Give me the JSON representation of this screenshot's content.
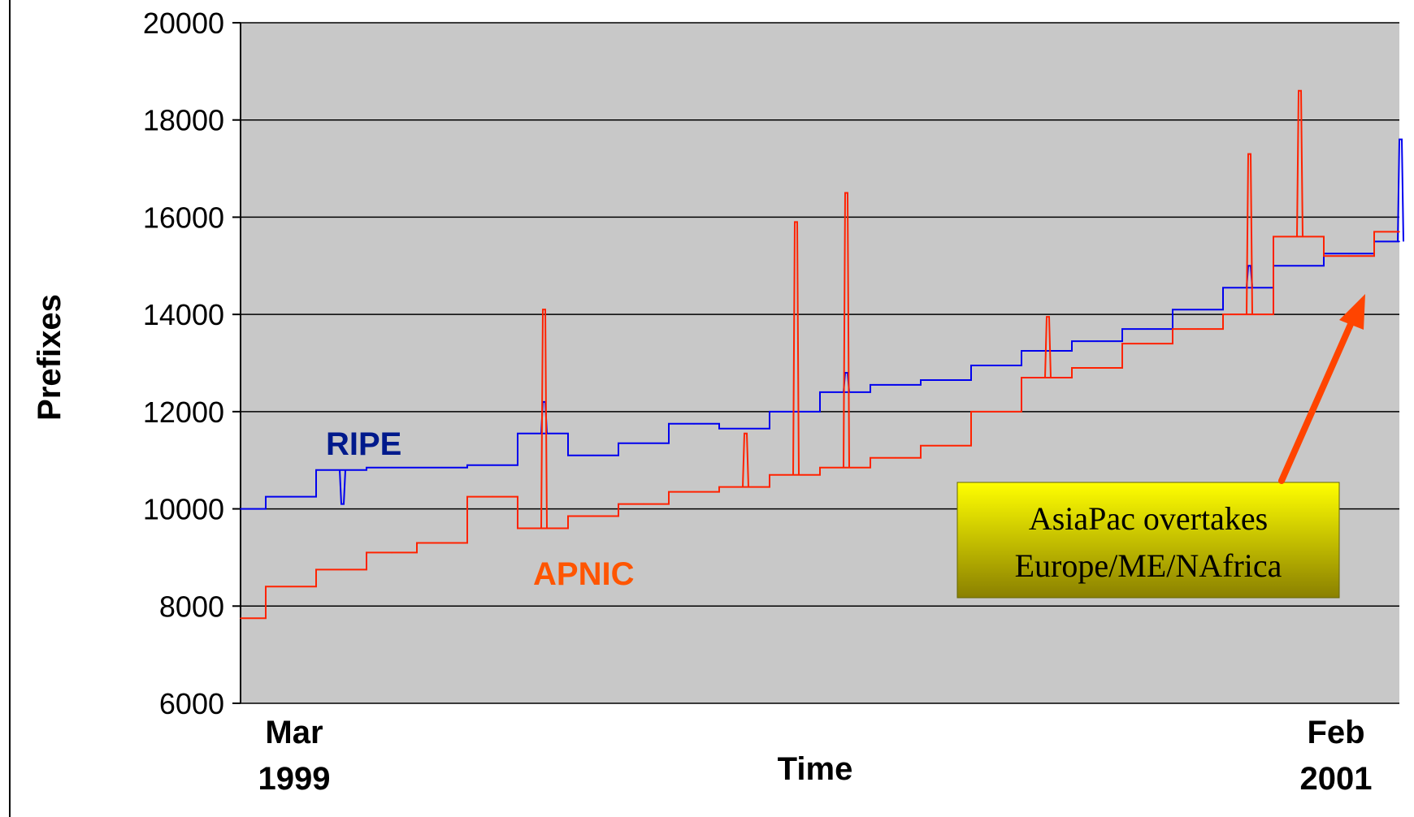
{
  "chart_data": {
    "type": "line",
    "title": "",
    "xlabel": "Time",
    "ylabel": "Prefixes",
    "ylim": [
      6000,
      20000
    ],
    "yticks": [
      "6000",
      "8000",
      "10000",
      "12000",
      "14000",
      "16000",
      "18000",
      "20000"
    ],
    "x_range_months": [
      "1999-03",
      "2001-02"
    ],
    "x_corner_labels": {
      "start_month": "Mar",
      "start_year": "1999",
      "end_month": "Feb",
      "end_year": "2001"
    },
    "grid": true,
    "background_color": "#c8c8c8",
    "series": [
      {
        "name": "RIPE",
        "color": "#0000ee",
        "label_color": "#001a8c",
        "x": [
          "1999-03",
          "1999-04",
          "1999-05",
          "1999-06",
          "1999-07",
          "1999-08",
          "1999-09",
          "1999-10",
          "1999-11",
          "1999-12",
          "2000-01",
          "2000-02",
          "2000-03",
          "2000-04",
          "2000-05",
          "2000-06",
          "2000-07",
          "2000-08",
          "2000-09",
          "2000-10",
          "2000-11",
          "2000-12",
          "2001-01",
          "2001-02"
        ],
        "values": [
          10000,
          10250,
          10800,
          10850,
          10850,
          10900,
          11550,
          11100,
          11350,
          11750,
          11650,
          12000,
          12400,
          12550,
          12650,
          12950,
          13250,
          13450,
          13700,
          14100,
          14550,
          15000,
          15250,
          15500
        ]
      },
      {
        "name": "APNIC",
        "color": "#ff2200",
        "label_color": "#ff5500",
        "x": [
          "1999-03",
          "1999-04",
          "1999-05",
          "1999-06",
          "1999-07",
          "1999-08",
          "1999-09",
          "1999-10",
          "1999-11",
          "1999-12",
          "2000-01",
          "2000-02",
          "2000-03",
          "2000-04",
          "2000-05",
          "2000-06",
          "2000-07",
          "2000-08",
          "2000-09",
          "2000-10",
          "2000-11",
          "2000-12",
          "2001-01",
          "2001-02"
        ],
        "values": [
          7750,
          8400,
          8750,
          9100,
          9300,
          10250,
          9600,
          9850,
          10100,
          10350,
          10450,
          10700,
          10850,
          11050,
          11300,
          12000,
          12700,
          12900,
          13400,
          13700,
          14000,
          15600,
          15200,
          15700
        ]
      }
    ],
    "spikes": [
      {
        "series": "RIPE",
        "x": "1999-05",
        "value": 10100
      },
      {
        "series": "RIPE",
        "x": "1999-09",
        "value": 12200
      },
      {
        "series": "RIPE",
        "x": "2000-03",
        "value": 12800
      },
      {
        "series": "RIPE",
        "x": "2000-11",
        "value": 15000
      },
      {
        "series": "RIPE",
        "x": "2001-02",
        "value": 17600
      },
      {
        "series": "APNIC",
        "x": "1999-09",
        "value": 14100
      },
      {
        "series": "APNIC",
        "x": "2000-01",
        "value": 11550
      },
      {
        "series": "APNIC",
        "x": "2000-02",
        "value": 15900
      },
      {
        "series": "APNIC",
        "x": "2000-03",
        "value": 16500
      },
      {
        "series": "APNIC",
        "x": "2000-07",
        "value": 13950
      },
      {
        "series": "APNIC",
        "x": "2000-11",
        "value": 17300
      },
      {
        "series": "APNIC",
        "x": "2000-12",
        "value": 18600
      }
    ],
    "series_labels": {
      "ripe": "RIPE",
      "apnic": "APNIC"
    },
    "annotation": {
      "line1": "AsiaPac overtakes",
      "line2": "Europe/ME/NAfrica",
      "box_color": "#e8e800",
      "arrow_color": "#ff4400"
    }
  }
}
